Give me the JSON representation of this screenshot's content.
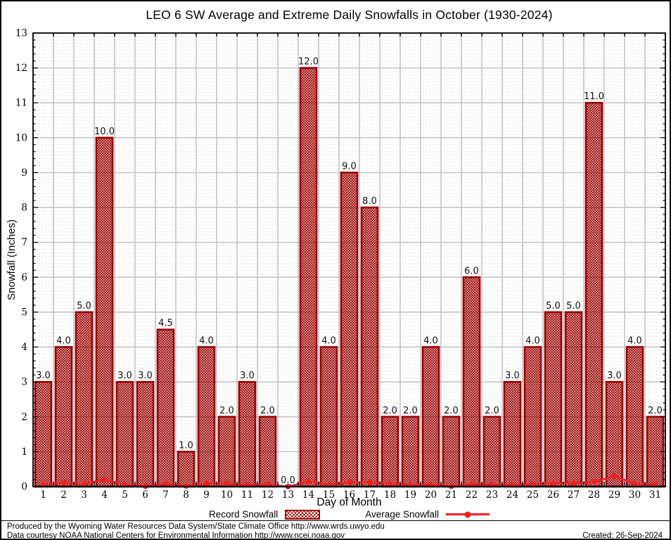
{
  "title": "LEO 6 SW Average and Extreme Daily Snowfalls in October (1930-2024)",
  "chart_data": {
    "type": "bar",
    "title": "LEO 6 SW Average and Extreme Daily Snowfalls in October (1930-2024)",
    "xlabel": "Day of Month",
    "ylabel": "Snowfall (Inches)",
    "ylim": [
      0,
      13
    ],
    "grid": true,
    "legend_position": "bottom",
    "categories": [
      1,
      2,
      3,
      4,
      5,
      6,
      7,
      8,
      9,
      10,
      11,
      12,
      13,
      14,
      15,
      16,
      17,
      18,
      19,
      20,
      21,
      22,
      23,
      24,
      25,
      26,
      27,
      28,
      29,
      30,
      31
    ],
    "series": [
      {
        "name": "Record Snowfall",
        "type": "bar",
        "values": [
          3.0,
          4.0,
          5.0,
          10.0,
          3.0,
          3.0,
          4.5,
          1.0,
          4.0,
          2.0,
          3.0,
          2.0,
          0.0,
          12.0,
          4.0,
          9.0,
          8.0,
          2.0,
          2.0,
          4.0,
          2.0,
          6.0,
          2.0,
          3.0,
          4.0,
          5.0,
          5.0,
          11.0,
          3.0,
          4.0,
          2.0
        ]
      },
      {
        "name": "Average Snowfall",
        "type": "line",
        "values": [
          0.07,
          0.1,
          0.08,
          0.2,
          0.05,
          0.01,
          0.07,
          0.02,
          0.1,
          0.07,
          0.05,
          0.06,
          0.0,
          0.15,
          0.05,
          0.12,
          0.12,
          0.08,
          0.06,
          0.06,
          0.01,
          0.07,
          0.06,
          0.05,
          0.06,
          0.1,
          0.1,
          0.13,
          0.3,
          0.08,
          0.06
        ]
      }
    ],
    "colors": {
      "bar_edge": "#990000",
      "bar_hatch": "#990000",
      "line": "#f42020",
      "grid_major": "#c4c4c4",
      "grid_minor": "#dcdcdc",
      "axis": "#000000"
    }
  },
  "footer": {
    "produced": "Produced by the Wyoming Water Resources Data System/State Climate Office http://www.wrds.uwyo.edu",
    "courtesy": "Data courtesy NOAA National Centers for Environmental Information http://www.ncei.noaa.gov",
    "created": "Created: 26-Sep-2024"
  }
}
